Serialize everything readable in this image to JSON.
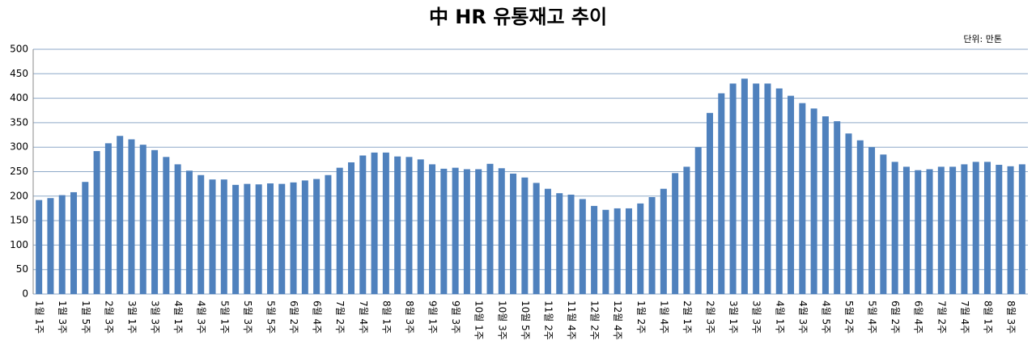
{
  "chart_data": {
    "type": "bar",
    "title": "中 HR 유통재고 추이",
    "unit_note": "단위: 만톤",
    "categories": [
      "1월 1주",
      null,
      "1월 3주",
      null,
      "1월 5주",
      null,
      "2월 3주",
      null,
      "3월 1주",
      null,
      "3월 3주",
      null,
      "4월 1주",
      null,
      "4월 3주",
      null,
      "5월 1주",
      null,
      "5월 3주",
      null,
      "5월 5주",
      null,
      "6월 2주",
      null,
      "6월 4주",
      null,
      "7월 2주",
      null,
      "7월 4주",
      null,
      "8월 1주",
      null,
      "8월 3주",
      null,
      "9월 1주",
      null,
      "9월 3주",
      null,
      "10월 1주",
      null,
      "10월 3주",
      null,
      "10월 5주",
      null,
      "11월 2주",
      null,
      "11월 4주",
      null,
      "12월 2주",
      null,
      "12월 4주",
      null,
      "1월 2주",
      null,
      "1월 4주",
      null,
      "2월 1주",
      null,
      "2월 3주",
      null,
      "3월 1주",
      null,
      "3월 3주",
      null,
      "4월 1주",
      null,
      "4월 3주",
      null,
      "4월 5주",
      null,
      "5월 2주",
      null,
      "5월 4주",
      null,
      "6월 2주",
      null,
      "6월 4주",
      null,
      "7월 2주",
      null,
      "7월 4주",
      null,
      "8월 1주",
      null,
      "8월 3주",
      null
    ],
    "values": [
      192,
      196,
      202,
      208,
      229,
      292,
      308,
      323,
      316,
      305,
      294,
      280,
      265,
      252,
      243,
      234,
      234,
      223,
      225,
      224,
      226,
      225,
      228,
      232,
      235,
      243,
      258,
      269,
      283,
      289,
      289,
      281,
      280,
      275,
      265,
      256,
      258,
      255,
      255,
      266,
      257,
      246,
      238,
      227,
      215,
      206,
      203,
      194,
      180,
      172,
      175,
      175,
      185,
      198,
      215,
      247,
      260,
      300,
      370,
      410,
      430,
      440,
      430,
      430,
      420,
      405,
      390,
      379,
      363,
      353,
      328,
      314,
      300,
      285,
      270,
      260,
      253,
      255,
      260,
      260,
      265,
      270,
      270,
      264,
      261,
      265
    ],
    "color": "#4f81bd",
    "ylim": [
      0,
      500
    ],
    "yticks": [
      0,
      50,
      100,
      150,
      200,
      250,
      300,
      350,
      400,
      450,
      500
    ],
    "grid": true
  }
}
